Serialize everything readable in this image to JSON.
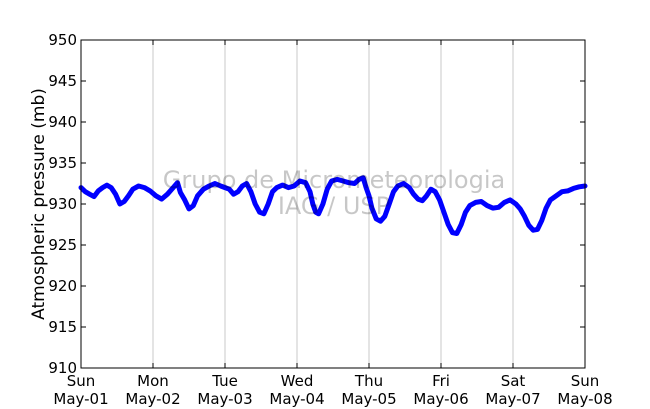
{
  "chart_data": {
    "type": "line",
    "title": "",
    "ylabel": "Atmospheric pressure (mb)",
    "xlabel": "",
    "ylim": [
      910,
      950
    ],
    "yticks": [
      910,
      915,
      920,
      925,
      930,
      935,
      940,
      945,
      950
    ],
    "xticks": [
      {
        "day": 0,
        "weekday": "Sun",
        "date": "May-01"
      },
      {
        "day": 1,
        "weekday": "Mon",
        "date": "May-02"
      },
      {
        "day": 2,
        "weekday": "Tue",
        "date": "May-03"
      },
      {
        "day": 3,
        "weekday": "Wed",
        "date": "May-04"
      },
      {
        "day": 4,
        "weekday": "Thu",
        "date": "May-05"
      },
      {
        "day": 5,
        "weekday": "Fri",
        "date": "May-06"
      },
      {
        "day": 6,
        "weekday": "Sat",
        "date": "May-07"
      },
      {
        "day": 7,
        "weekday": "Sun",
        "date": "May-08"
      }
    ],
    "grid": "vertical",
    "watermark": [
      "Grupo de Micrometeorologia",
      "IAG / USP"
    ],
    "series": [
      {
        "color": "#0000ff",
        "points": [
          [
            0.0,
            932.0
          ],
          [
            0.06,
            931.5
          ],
          [
            0.12,
            931.2
          ],
          [
            0.18,
            930.9
          ],
          [
            0.24,
            931.6
          ],
          [
            0.3,
            932.0
          ],
          [
            0.36,
            932.3
          ],
          [
            0.42,
            932.0
          ],
          [
            0.48,
            931.2
          ],
          [
            0.54,
            930.0
          ],
          [
            0.6,
            930.3
          ],
          [
            0.66,
            931.0
          ],
          [
            0.72,
            931.8
          ],
          [
            0.8,
            932.2
          ],
          [
            0.88,
            932.0
          ],
          [
            0.96,
            931.6
          ],
          [
            1.04,
            931.0
          ],
          [
            1.12,
            930.6
          ],
          [
            1.2,
            931.2
          ],
          [
            1.28,
            932.0
          ],
          [
            1.34,
            932.6
          ],
          [
            1.38,
            931.4
          ],
          [
            1.44,
            930.5
          ],
          [
            1.5,
            929.4
          ],
          [
            1.56,
            929.8
          ],
          [
            1.62,
            931.0
          ],
          [
            1.7,
            931.8
          ],
          [
            1.78,
            932.2
          ],
          [
            1.86,
            932.5
          ],
          [
            1.94,
            932.2
          ],
          [
            2.0,
            932.0
          ],
          [
            2.06,
            931.8
          ],
          [
            2.12,
            931.2
          ],
          [
            2.18,
            931.5
          ],
          [
            2.24,
            932.2
          ],
          [
            2.3,
            932.5
          ],
          [
            2.36,
            931.5
          ],
          [
            2.42,
            930.0
          ],
          [
            2.48,
            929.0
          ],
          [
            2.54,
            928.8
          ],
          [
            2.6,
            930.0
          ],
          [
            2.66,
            931.5
          ],
          [
            2.72,
            932.0
          ],
          [
            2.8,
            932.3
          ],
          [
            2.88,
            932.0
          ],
          [
            2.96,
            932.2
          ],
          [
            3.04,
            932.8
          ],
          [
            3.12,
            932.6
          ],
          [
            3.18,
            931.5
          ],
          [
            3.22,
            930.0
          ],
          [
            3.26,
            929.0
          ],
          [
            3.3,
            928.8
          ],
          [
            3.36,
            930.0
          ],
          [
            3.42,
            931.8
          ],
          [
            3.48,
            932.8
          ],
          [
            3.56,
            933.0
          ],
          [
            3.64,
            932.8
          ],
          [
            3.72,
            932.6
          ],
          [
            3.8,
            932.5
          ],
          [
            3.86,
            933.0
          ],
          [
            3.92,
            933.2
          ],
          [
            3.96,
            932.0
          ],
          [
            4.0,
            931.0
          ],
          [
            4.04,
            929.5
          ],
          [
            4.1,
            928.2
          ],
          [
            4.16,
            927.9
          ],
          [
            4.22,
            928.5
          ],
          [
            4.28,
            930.0
          ],
          [
            4.34,
            931.5
          ],
          [
            4.4,
            932.2
          ],
          [
            4.48,
            932.5
          ],
          [
            4.56,
            932.0
          ],
          [
            4.62,
            931.2
          ],
          [
            4.68,
            930.6
          ],
          [
            4.74,
            930.4
          ],
          [
            4.8,
            931.0
          ],
          [
            4.86,
            931.8
          ],
          [
            4.92,
            931.5
          ],
          [
            4.98,
            930.5
          ],
          [
            5.04,
            929.0
          ],
          [
            5.1,
            927.5
          ],
          [
            5.16,
            926.5
          ],
          [
            5.22,
            926.4
          ],
          [
            5.28,
            927.5
          ],
          [
            5.34,
            929.0
          ],
          [
            5.4,
            929.8
          ],
          [
            5.48,
            930.2
          ],
          [
            5.56,
            930.3
          ],
          [
            5.64,
            929.8
          ],
          [
            5.72,
            929.5
          ],
          [
            5.8,
            929.6
          ],
          [
            5.88,
            930.2
          ],
          [
            5.96,
            930.5
          ],
          [
            6.04,
            930.0
          ],
          [
            6.1,
            929.4
          ],
          [
            6.16,
            928.5
          ],
          [
            6.22,
            927.4
          ],
          [
            6.28,
            926.8
          ],
          [
            6.34,
            926.9
          ],
          [
            6.4,
            928.0
          ],
          [
            6.46,
            929.5
          ],
          [
            6.52,
            930.5
          ],
          [
            6.6,
            931.0
          ],
          [
            6.68,
            931.5
          ],
          [
            6.76,
            931.6
          ],
          [
            6.84,
            931.9
          ],
          [
            6.92,
            932.1
          ],
          [
            7.0,
            932.2
          ]
        ]
      }
    ]
  }
}
